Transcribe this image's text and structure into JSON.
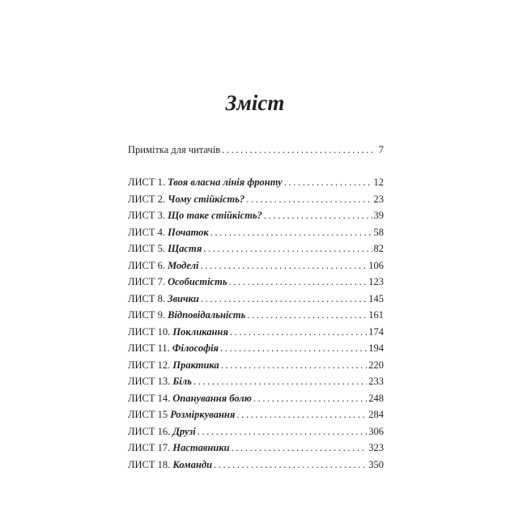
{
  "title": "Зміст",
  "intro": {
    "label": "Примітка для читачів",
    "page": "7"
  },
  "entries": [
    {
      "prefix": "ЛИСТ 1. ",
      "title": "Твоя власна лінія фронту",
      "page": "12"
    },
    {
      "prefix": "ЛИСТ 2. ",
      "title": "Чому стійкість?",
      "page": "23"
    },
    {
      "prefix": "ЛИСТ 3. ",
      "title": "Що таке стійкість?",
      "page": "39"
    },
    {
      "prefix": "ЛИСТ 4. ",
      "title": "Початок",
      "page": "58"
    },
    {
      "prefix": "ЛИСТ 5. ",
      "title": "Щастя",
      "page": "82"
    },
    {
      "prefix": "ЛИСТ 6. ",
      "title": "Моделі",
      "page": "106"
    },
    {
      "prefix": "ЛИСТ 7. ",
      "title": "Особистість",
      "page": "123"
    },
    {
      "prefix": "ЛИСТ 8. ",
      "title": "Звички",
      "page": "145"
    },
    {
      "prefix": "ЛИСТ 9. ",
      "title": "Відповідальність",
      "page": "161"
    },
    {
      "prefix": "ЛИСТ 10. ",
      "title": "Покликання",
      "page": "174"
    },
    {
      "prefix": "ЛИСТ 11. ",
      "title": "Філософія",
      "page": "194"
    },
    {
      "prefix": "ЛИСТ 12. ",
      "title": "Практика",
      "page": "220"
    },
    {
      "prefix": "ЛИСТ 13. ",
      "title": "Біль",
      "page": "233"
    },
    {
      "prefix": "ЛИСТ 14. ",
      "title": "Опанування болю",
      "page": "248"
    },
    {
      "prefix": "ЛИСТ 15 ",
      "title": "Розміркування",
      "page": "284"
    },
    {
      "prefix": "ЛИСТ 16. ",
      "title": "Друзі",
      "page": "306"
    },
    {
      "prefix": "ЛИСТ 17. ",
      "title": "Наставники",
      "page": "323"
    },
    {
      "prefix": "ЛИСТ 18. ",
      "title": "Команди",
      "page": "350"
    }
  ]
}
